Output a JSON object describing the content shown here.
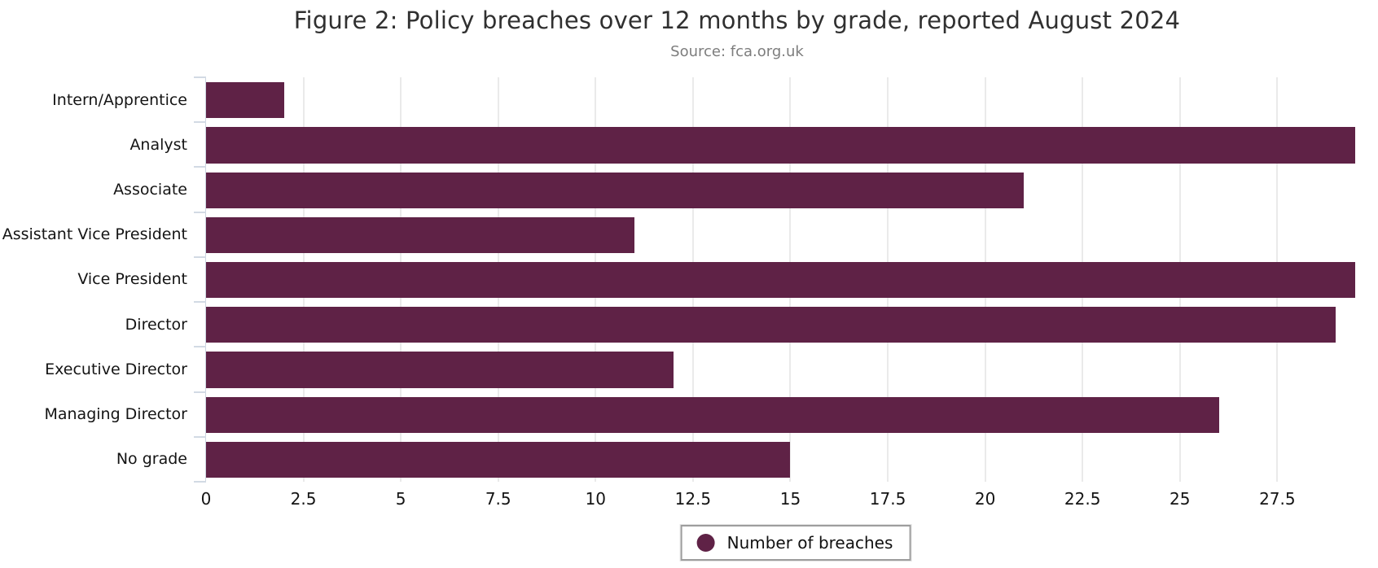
{
  "chart_data": {
    "type": "bar",
    "orientation": "horizontal",
    "title": "Figure 2: Policy breaches over 12 months by grade, reported August 2024",
    "subtitle": "Source: fca.org.uk",
    "categories": [
      "Intern/Apprentice",
      "Analyst",
      "Associate",
      "Assistant Vice President",
      "Vice President",
      "Director",
      "Executive Director",
      "Managing Director",
      "No grade"
    ],
    "series": [
      {
        "name": "Number of breaches",
        "values": [
          2,
          29.5,
          21,
          11,
          29.5,
          29,
          12,
          26,
          15
        ]
      }
    ],
    "legend_label": "Number of breaches",
    "legend_position": "bottom-center",
    "xlabel": "",
    "ylabel": "",
    "xlim": [
      0,
      29.5
    ],
    "xticks": [
      0,
      2.5,
      5,
      7.5,
      10,
      12.5,
      15,
      17.5,
      20,
      22.5,
      25,
      27.5
    ],
    "grid": "vertical-only",
    "colors": {
      "bar": "#5f2246",
      "gridline": "#eaeaea",
      "axis": "#ccd5e0",
      "title_text": "#303030",
      "subtitle_text": "#7d7d7d",
      "tick_text": "#141414"
    }
  }
}
